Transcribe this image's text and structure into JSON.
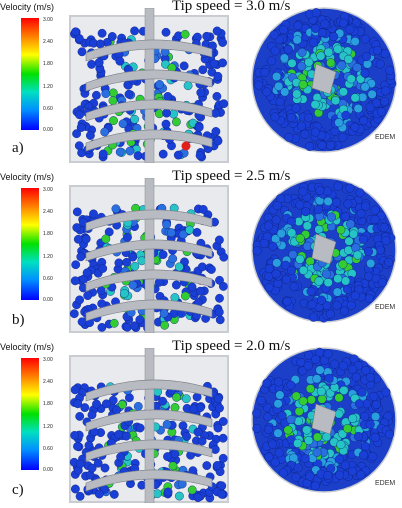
{
  "colorbar": {
    "title": "Velocity (m/s)",
    "ticks": [
      "3.00",
      "2.40",
      "1.80",
      "1.20",
      "0.60",
      "0.00"
    ]
  },
  "panels": [
    {
      "label": "a)",
      "title": "Tip speed = 3.0 m/s"
    },
    {
      "label": "b)",
      "title": "Tip speed = 2.5 m/s"
    },
    {
      "label": "c)",
      "title": "Tip speed = 2.0 m/s"
    }
  ],
  "watermark": "EDEM",
  "colors": {
    "particle_slow": "#1a3fd6",
    "particle_mid": "#26c4c4",
    "particle_fast": "#33cc33",
    "particle_peak": "#e0201a",
    "screw": "#b8bcc2",
    "vessel": "#c9ccd1"
  }
}
